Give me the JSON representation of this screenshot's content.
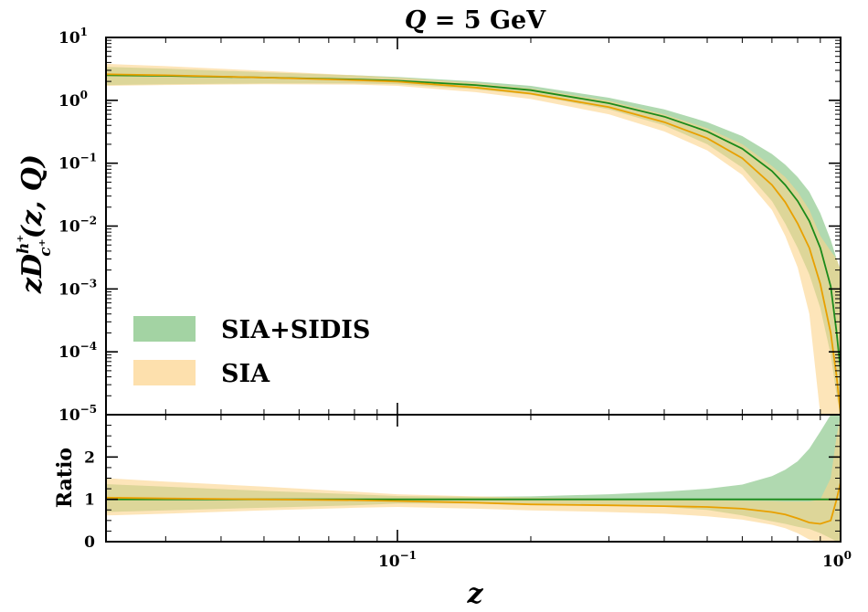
{
  "chart_data": [
    {
      "type": "line",
      "panel": "main",
      "title": "Q = 5 GeV",
      "title_parts": {
        "var": "Q",
        "rest": " = 5 GeV"
      },
      "ylabel": "zD_{c+}^{h+}(z, Q)",
      "ylabel_parts": {
        "pre": "zD",
        "sup": "h⁺",
        "sub": "c⁺",
        "post": "(z, Q)"
      },
      "xscale": "log",
      "yscale": "log",
      "xlim": [
        0.022,
        1.0
      ],
      "ylim": [
        1e-05,
        10
      ],
      "ytick_values": [
        1e-05,
        0.0001,
        0.001,
        0.01,
        0.1,
        1,
        10
      ],
      "ytick_labels": [
        {
          "base": "10",
          "exp": "−5"
        },
        {
          "base": "10",
          "exp": "−4"
        },
        {
          "base": "10",
          "exp": "−3"
        },
        {
          "base": "10",
          "exp": "−2"
        },
        {
          "base": "10",
          "exp": "−1"
        },
        {
          "base": "10",
          "exp": "0"
        },
        {
          "base": "10",
          "exp": "1"
        }
      ],
      "legend_position": "lower-left",
      "series": [
        {
          "name": "SIA+SIDIS",
          "line_color": "#1a8a1a",
          "band_color": "#7cc07c",
          "x": [
            0.022,
            0.03,
            0.05,
            0.08,
            0.1,
            0.15,
            0.2,
            0.3,
            0.4,
            0.5,
            0.6,
            0.7,
            0.75,
            0.8,
            0.85,
            0.9,
            0.95,
            0.98,
            1.0
          ],
          "central": [
            2.5,
            2.45,
            2.3,
            2.15,
            2.05,
            1.75,
            1.45,
            0.9,
            0.55,
            0.32,
            0.17,
            0.075,
            0.045,
            0.025,
            0.012,
            0.0045,
            0.0011,
            0.0002,
            5e-05
          ],
          "lower": [
            1.75,
            1.8,
            1.85,
            1.85,
            1.8,
            1.5,
            1.22,
            0.72,
            0.4,
            0.2,
            0.085,
            0.025,
            0.011,
            0.0045,
            0.0017,
            0.0005,
            9e-05,
            2e-05,
            1e-05
          ],
          "upper": [
            3.4,
            3.2,
            2.8,
            2.5,
            2.35,
            2.0,
            1.7,
            1.1,
            0.72,
            0.45,
            0.27,
            0.14,
            0.095,
            0.06,
            0.035,
            0.016,
            0.006,
            0.003,
            0.002
          ]
        },
        {
          "name": "SIA",
          "line_color": "#e8a000",
          "band_color": "#fcd38a",
          "x": [
            0.022,
            0.03,
            0.05,
            0.08,
            0.1,
            0.15,
            0.2,
            0.3,
            0.4,
            0.5,
            0.6,
            0.7,
            0.75,
            0.8,
            0.85,
            0.9,
            0.95,
            0.98,
            1.0
          ],
          "central": [
            2.6,
            2.5,
            2.3,
            2.1,
            1.98,
            1.6,
            1.28,
            0.78,
            0.45,
            0.25,
            0.12,
            0.045,
            0.024,
            0.011,
            0.0045,
            0.0012,
            0.0002,
            4e-05,
            1e-05
          ],
          "lower": [
            1.7,
            1.75,
            1.8,
            1.78,
            1.7,
            1.35,
            1.05,
            0.6,
            0.32,
            0.16,
            0.065,
            0.018,
            0.007,
            0.0022,
            0.0004,
            1e-05,
            1e-05,
            1e-05,
            1e-05
          ],
          "upper": [
            3.8,
            3.5,
            2.95,
            2.5,
            2.3,
            1.9,
            1.55,
            0.98,
            0.6,
            0.36,
            0.2,
            0.09,
            0.06,
            0.035,
            0.018,
            0.007,
            0.004,
            0.003,
            0.002
          ]
        }
      ]
    },
    {
      "type": "line",
      "panel": "ratio",
      "ylabel": "Ratio",
      "xlabel": "z",
      "xscale": "log",
      "yscale": "linear",
      "xlim": [
        0.022,
        1.0
      ],
      "ylim": [
        0,
        3
      ],
      "ytick_values": [
        0,
        1,
        2
      ],
      "ytick_labels": [
        "0",
        "1",
        "2"
      ],
      "xtick_values": [
        0.1,
        1.0
      ],
      "xtick_labels": [
        {
          "base": "10",
          "exp": "−1"
        },
        {
          "base": "10",
          "exp": "0"
        }
      ],
      "series": [
        {
          "name": "SIA+SIDIS",
          "line_color": "#1a8a1a",
          "band_color": "#7cc07c",
          "x": [
            0.022,
            0.03,
            0.05,
            0.08,
            0.1,
            0.15,
            0.2,
            0.3,
            0.4,
            0.5,
            0.6,
            0.7,
            0.75,
            0.8,
            0.85,
            0.9,
            0.95,
            0.98,
            1.0
          ],
          "central": [
            1,
            1,
            1,
            1,
            1,
            1,
            1,
            1,
            1,
            1,
            1,
            1,
            1,
            1,
            1,
            1,
            1,
            1,
            1
          ],
          "lower": [
            0.7,
            0.74,
            0.8,
            0.86,
            0.9,
            0.9,
            0.9,
            0.87,
            0.82,
            0.75,
            0.62,
            0.48,
            0.42,
            0.35,
            0.3,
            0.2,
            0.08,
            0.0,
            0.0
          ],
          "upper": [
            1.36,
            1.3,
            1.2,
            1.12,
            1.08,
            1.06,
            1.07,
            1.12,
            1.18,
            1.25,
            1.35,
            1.55,
            1.7,
            1.9,
            2.2,
            2.6,
            3.0,
            3.0,
            3.0
          ]
        },
        {
          "name": "SIA",
          "line_color": "#e8a000",
          "band_color": "#fcd38a",
          "x": [
            0.022,
            0.03,
            0.05,
            0.08,
            0.1,
            0.15,
            0.2,
            0.3,
            0.4,
            0.5,
            0.6,
            0.7,
            0.75,
            0.8,
            0.85,
            0.9,
            0.95,
            0.98,
            1.0
          ],
          "central": [
            1.04,
            1.02,
            1.0,
            0.98,
            0.96,
            0.92,
            0.88,
            0.86,
            0.84,
            0.82,
            0.78,
            0.7,
            0.64,
            0.55,
            0.45,
            0.42,
            0.5,
            1.0,
            1.4
          ],
          "lower": [
            0.62,
            0.66,
            0.74,
            0.8,
            0.82,
            0.78,
            0.74,
            0.7,
            0.66,
            0.6,
            0.52,
            0.4,
            0.32,
            0.2,
            0.05,
            0.0,
            0.0,
            0.0,
            0.0
          ],
          "upper": [
            1.5,
            1.42,
            1.3,
            1.18,
            1.12,
            1.07,
            1.04,
            1.02,
            1.0,
            0.98,
            0.97,
            0.96,
            0.95,
            0.95,
            0.95,
            1.0,
            1.5,
            2.5,
            3.0
          ]
        }
      ]
    }
  ]
}
